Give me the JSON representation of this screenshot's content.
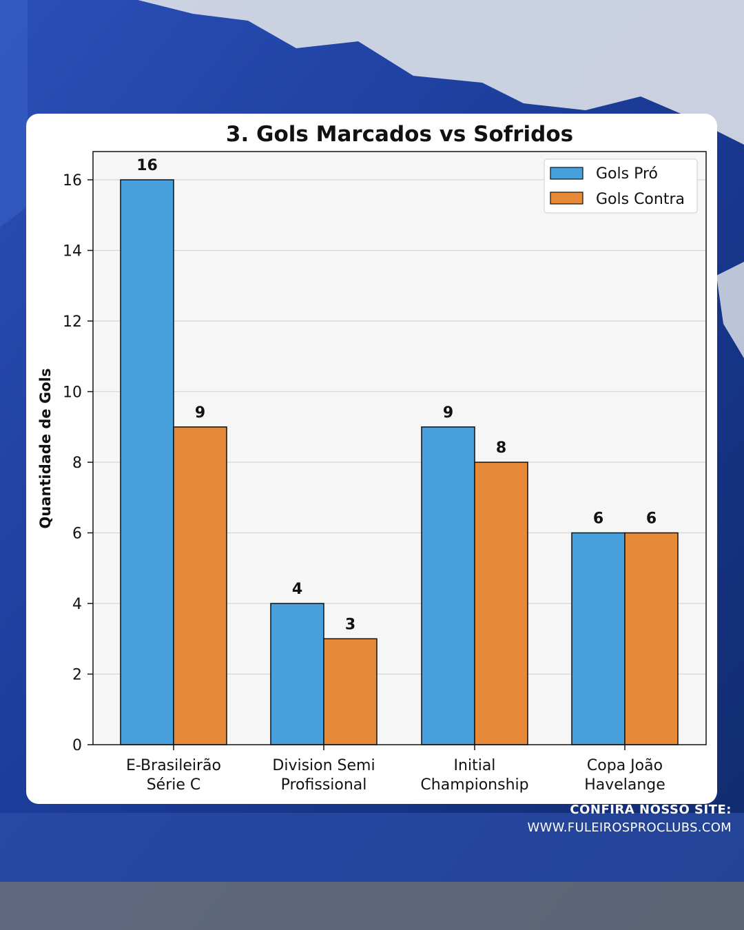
{
  "footer": {
    "cta": "CONFIRA NOSSO SITE:",
    "site": "WWW.FULEIROSPROCLUBS.COM"
  },
  "colors": {
    "series_pro": "#48a0dd",
    "series_contra": "#e68a3a",
    "plot_bg": "#f6f6f6",
    "grid": "#d6d6d6",
    "background": "#16307a"
  },
  "chart_data": {
    "type": "bar",
    "title": "3. Gols Marcados vs Sofridos",
    "xlabel": "",
    "ylabel": "Quantidade de Gols",
    "categories": [
      [
        "E-Brasileirão",
        "Série C"
      ],
      [
        "Division Semi",
        "Profissional"
      ],
      [
        "Initial",
        "Championship"
      ],
      [
        "Copa João",
        "Havelange"
      ]
    ],
    "series": [
      {
        "name": "Gols Pró",
        "values": [
          16,
          4,
          9,
          6
        ]
      },
      {
        "name": "Gols Contra",
        "values": [
          9,
          3,
          8,
          6
        ]
      }
    ],
    "ylim": [
      0,
      16.8
    ],
    "yticks": [
      0,
      2,
      4,
      6,
      8,
      10,
      12,
      14,
      16
    ],
    "grid": true,
    "legend": "top-right",
    "data_labels": true
  }
}
